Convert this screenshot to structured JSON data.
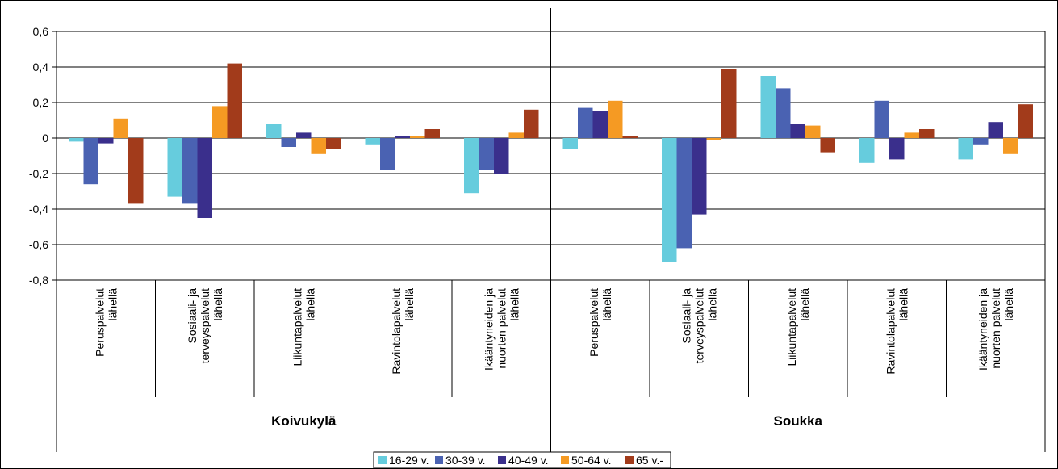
{
  "chart_data": {
    "type": "bar",
    "title": "",
    "xlabel": "",
    "ylabel": "",
    "ylim": [
      -0.8,
      0.6
    ],
    "yticks": [
      "0,6",
      "0,4",
      "0,2",
      "0",
      "-0,2",
      "-0,4",
      "-0,6",
      "-0,8"
    ],
    "ytick_values": [
      0.6,
      0.4,
      0.2,
      0,
      -0.2,
      -0.4,
      -0.6,
      -0.8
    ],
    "grid": true,
    "legend_position": "bottom",
    "groups": [
      {
        "name": "Koivukylä",
        "categories": [
          [
            "Peruspalvelut",
            "lähellä"
          ],
          [
            "Sosiaali- ja",
            "terveyspalvelut",
            "lähellä"
          ],
          [
            "Liikuntapalvelut",
            "lähellä"
          ],
          [
            "Ravintolapalvelut",
            "lähellä"
          ],
          [
            "Ikääntyneiden ja",
            "nuorten palvelut",
            "lähellä"
          ]
        ]
      },
      {
        "name": "Soukka",
        "categories": [
          [
            "Peruspalvelut",
            "lähellä"
          ],
          [
            "Sosiaali- ja",
            "terveyspalvelut",
            "lähellä"
          ],
          [
            "Liikuntapalvelut",
            "lähellä"
          ],
          [
            "Ravintolapalvelut",
            "lähellä"
          ],
          [
            "Ikääntyneiden ja",
            "nuorten palvelut",
            "lähellä"
          ]
        ]
      }
    ],
    "series": [
      {
        "name": "16-29 v.",
        "color": "#66CCDD",
        "values": [
          -0.02,
          -0.33,
          0.08,
          -0.04,
          -0.31,
          -0.06,
          -0.7,
          0.35,
          -0.14,
          -0.12
        ]
      },
      {
        "name": "30-39 v.",
        "color": "#4A62B2",
        "values": [
          -0.26,
          -0.37,
          -0.05,
          -0.18,
          -0.18,
          0.17,
          -0.62,
          0.28,
          0.21,
          -0.04
        ]
      },
      {
        "name": "40-49 v.",
        "color": "#3A2F8C",
        "values": [
          -0.03,
          -0.45,
          0.03,
          0.01,
          -0.2,
          0.15,
          -0.43,
          0.08,
          -0.12,
          0.09
        ]
      },
      {
        "name": "50-64 v.",
        "color": "#F59A23",
        "values": [
          0.11,
          0.18,
          -0.09,
          0.01,
          0.03,
          0.21,
          -0.01,
          0.07,
          0.03,
          -0.09
        ]
      },
      {
        "name": "65 v.-",
        "color": "#A23B1B",
        "values": [
          -0.37,
          0.42,
          -0.06,
          0.05,
          0.16,
          0.01,
          0.39,
          -0.08,
          0.05,
          0.19
        ]
      }
    ]
  }
}
